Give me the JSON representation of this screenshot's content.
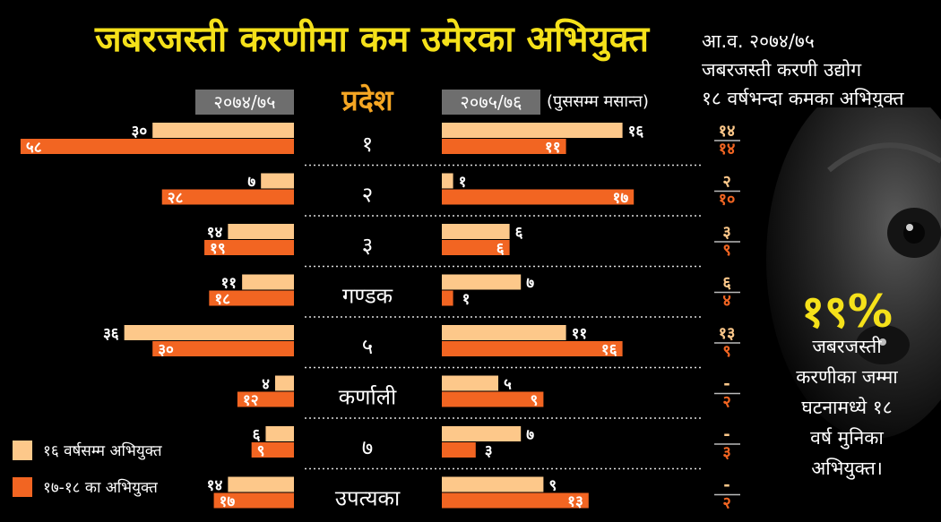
{
  "title": "जबरजस्ती करणीमा कम उमेरका अभियुक्त",
  "side_note": [
    "आ.व. २०७४/७५",
    "जबरजस्ती करणी उद्योग",
    "१८ वर्षभन्दा कमका अभियुक्त"
  ],
  "left_year": "२०७४/७५",
  "right_year": "२०७५/७६",
  "right_year_note": "(पुससम्म मसान्त)",
  "province_header": "प्रदेश",
  "colors": {
    "light": "#fdc88a",
    "dark": "#f26522",
    "title": "#f5e11a",
    "header": "#f5a623",
    "box": "#6e6e6e"
  },
  "legend": [
    {
      "label": "१६ वर्षसम्म अभियुक्त",
      "color": "#fdc88a"
    },
    {
      "label": "१७-१८ का अभियुक्त",
      "color": "#f26522"
    }
  ],
  "highlight": {
    "value": "१९%",
    "lines": [
      "जबरजस्ती",
      "करणीका जम्मा",
      "घटनामध्ये १८",
      "वर्ष मुनिका",
      "अभियुक्त।"
    ]
  },
  "chart_data": {
    "type": "bar",
    "categories": [
      "१",
      "२",
      "३",
      "गण्डक",
      "५",
      "कर्णाली",
      "७",
      "उपत्यका"
    ],
    "series": [
      {
        "name": "१६ वर्षसम्म अभियुक्त",
        "period": "२०७४/७५",
        "values": [
          30,
          7,
          14,
          11,
          36,
          4,
          6,
          14
        ],
        "labels": [
          "३०",
          "७",
          "१४",
          "११",
          "३६",
          "४",
          "६",
          "१४"
        ]
      },
      {
        "name": "१७-१८ का अभियुक्त",
        "period": "२०७४/७५",
        "values": [
          58,
          28,
          19,
          18,
          30,
          12,
          9,
          17
        ],
        "labels": [
          "५८",
          "२८",
          "१९",
          "१८",
          "३०",
          "१२",
          "९",
          "१७"
        ]
      },
      {
        "name": "१६ वर्षसम्म अभियुक्त",
        "period": "२०७५/७६",
        "values": [
          16,
          1,
          6,
          7,
          11,
          5,
          7,
          9
        ],
        "labels": [
          "१६",
          "१",
          "६",
          "७",
          "११",
          "५",
          "७",
          "९"
        ]
      },
      {
        "name": "१७-१८ का अभियुक्त",
        "period": "२०७५/७६",
        "values": [
          11,
          17,
          6,
          1,
          16,
          9,
          3,
          13
        ],
        "labels": [
          "११",
          "१७",
          "६",
          "१",
          "१६",
          "९",
          "३",
          "१३"
        ]
      }
    ],
    "side_column": {
      "top": [
        "१४",
        "२",
        "३",
        "६",
        "१३",
        "-",
        "-",
        "-"
      ],
      "bottom": [
        "१४",
        "१०",
        "९",
        "४",
        "९",
        "२",
        "३",
        "२"
      ]
    }
  }
}
